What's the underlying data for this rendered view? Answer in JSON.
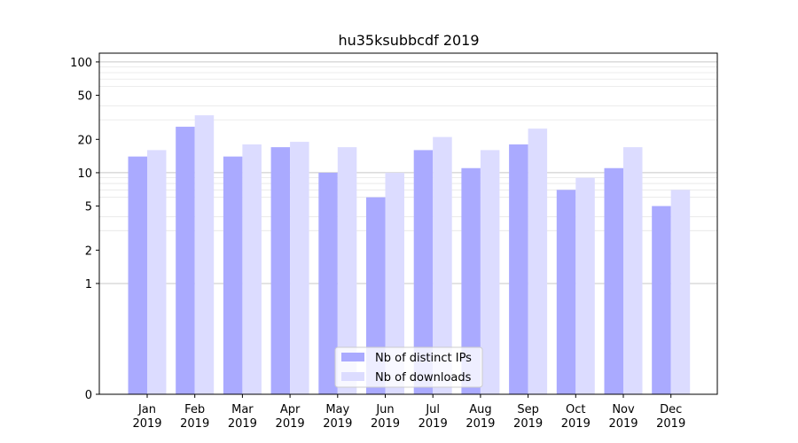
{
  "chart_data": {
    "type": "bar",
    "title": "hu35ksubbcdf 2019",
    "xlabel": "",
    "ylabel": "",
    "categories": [
      {
        "month": "Jan",
        "year": "2019"
      },
      {
        "month": "Feb",
        "year": "2019"
      },
      {
        "month": "Mar",
        "year": "2019"
      },
      {
        "month": "Apr",
        "year": "2019"
      },
      {
        "month": "May",
        "year": "2019"
      },
      {
        "month": "Jun",
        "year": "2019"
      },
      {
        "month": "Jul",
        "year": "2019"
      },
      {
        "month": "Aug",
        "year": "2019"
      },
      {
        "month": "Sep",
        "year": "2019"
      },
      {
        "month": "Oct",
        "year": "2019"
      },
      {
        "month": "Nov",
        "year": "2019"
      },
      {
        "month": "Dec",
        "year": "2019"
      }
    ],
    "series": [
      {
        "name": "Nb of distinct IPs",
        "color": "#aaaaff",
        "values": [
          14,
          26,
          14,
          17,
          10,
          6,
          16,
          11,
          18,
          7,
          11,
          5
        ]
      },
      {
        "name": "Nb of downloads",
        "color": "#dcdcff",
        "values": [
          16,
          33,
          18,
          19,
          17,
          10,
          21,
          16,
          25,
          9,
          17,
          7
        ]
      }
    ],
    "yscale": "symlog",
    "yticks": [
      0,
      1,
      2,
      5,
      10,
      20,
      50,
      100
    ],
    "ytick_labels": [
      "0",
      "1",
      "2",
      "5",
      "10",
      "20",
      "50",
      "100"
    ],
    "ylim": [
      0,
      120
    ],
    "grid": true,
    "legend_position": "bottom-center"
  }
}
